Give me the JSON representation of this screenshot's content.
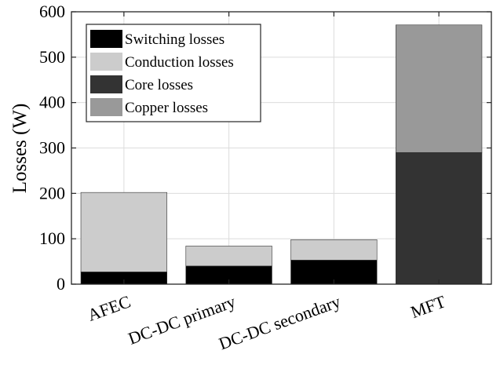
{
  "chart_data": {
    "type": "bar",
    "stacked": true,
    "categories": [
      "AFEC",
      "DC-DC primary",
      "DC-DC secondary",
      "MFT"
    ],
    "series": [
      {
        "name": "Switching losses",
        "color": "#000000",
        "values": [
          27,
          40,
          53,
          0
        ]
      },
      {
        "name": "Conduction losses",
        "color": "#cccccc",
        "values": [
          175,
          44,
          45,
          0
        ]
      },
      {
        "name": "Core losses",
        "color": "#333333",
        "values": [
          0,
          0,
          0,
          290
        ]
      },
      {
        "name": "Copper losses",
        "color": "#999999",
        "values": [
          0,
          0,
          0,
          281
        ]
      }
    ],
    "ylabel": "Losses (W)",
    "ylim": [
      0,
      600
    ],
    "yticks": [
      0,
      100,
      200,
      300,
      400,
      500,
      600
    ],
    "grid": true,
    "legend_position": "top-left"
  }
}
